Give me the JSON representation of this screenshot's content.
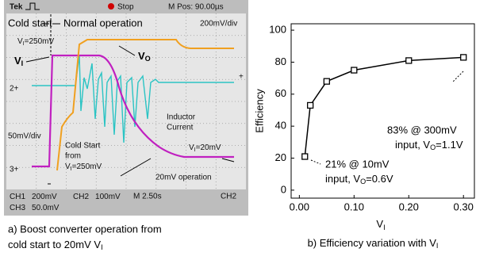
{
  "oscilloscope": {
    "brand": "Tek",
    "status": "Stop",
    "position": "M Pos: 90.00µs",
    "phase_1": "Cold start",
    "phase_2": "Normal operation",
    "scale_top": "200mV/div",
    "vi_start": [
      "V",
      "I",
      "=250mV"
    ],
    "vi_label": [
      "V",
      "I"
    ],
    "vo_label": [
      "V",
      "O"
    ],
    "inductor_1": "Inductor",
    "inductor_2": "Current",
    "scale_left": "50mV/div",
    "cold_1": "Cold Start",
    "cold_2": "from",
    "cold_3": [
      "V",
      "I",
      "=250mV"
    ],
    "vi_end": [
      "V",
      "I",
      "=20mV"
    ],
    "end_note": "20mV operation",
    "marker_2": "2+",
    "marker_3": "3+",
    "marker_right": "+",
    "ch1": "CH1",
    "ch1_scale": "200mV",
    "ch2": "CH2",
    "ch2_scale": "100mV",
    "timebase": "M 2.50s",
    "trigger": "CH2",
    "ch3": "CH3",
    "ch3_scale": "50.0mV",
    "caption_1": "a) Boost converter operation from",
    "caption_2": [
      "cold start to 20mV V",
      "I"
    ]
  },
  "chart_data": {
    "type": "line",
    "x": [
      0.01,
      0.02,
      0.05,
      0.1,
      0.2,
      0.3
    ],
    "values": [
      21,
      53,
      68,
      75,
      81,
      83
    ],
    "color": "#000000",
    "xlim": [
      -0.015,
      0.32
    ],
    "xticks": [
      {
        "value": 0,
        "label": "0.00"
      },
      {
        "value": 0.1,
        "label": "0.10"
      },
      {
        "value": 0.2,
        "label": "0.20"
      },
      {
        "value": 0.3,
        "label": "0.30"
      }
    ],
    "ylim": [
      -5,
      104
    ],
    "yticks": [
      0,
      20,
      40,
      60,
      80,
      100
    ],
    "ylabel": "Efficiency",
    "xlabel": [
      "V",
      "I"
    ],
    "annotation_high": [
      "83% @ 300mV",
      "input, V",
      "O",
      "=1.1V"
    ],
    "annotation_low": [
      "21% @ 10mV",
      "input, V",
      "O",
      "=0.6V"
    ],
    "caption": [
      "b) Efficiency variation with V",
      "I"
    ]
  }
}
